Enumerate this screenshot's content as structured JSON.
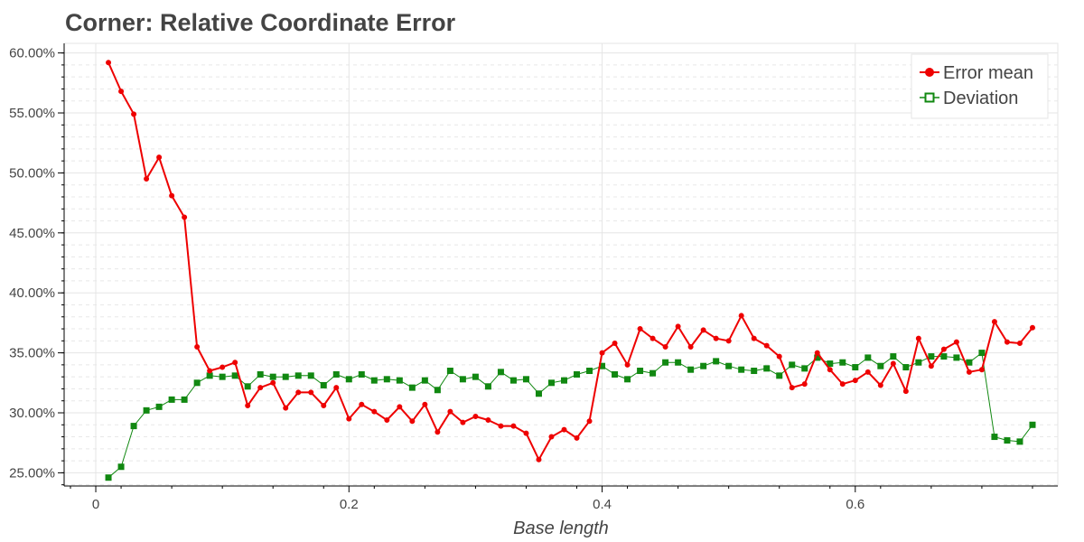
{
  "chart_data": {
    "type": "line",
    "title": "Corner: Relative Coordinate Error",
    "xlabel": "Base length",
    "ylabel": "",
    "xlim": [
      -0.025,
      0.76
    ],
    "ylim": [
      0.239,
      0.608
    ],
    "x_ticks": [
      0,
      0.2,
      0.4,
      0.6
    ],
    "x_tick_labels": [
      "0",
      "0.2",
      "0.4",
      "0.6"
    ],
    "y_ticks": [
      0.25,
      0.3,
      0.35,
      0.4,
      0.45,
      0.5,
      0.55,
      0.6
    ],
    "y_tick_labels": [
      "25.00%",
      "30.00%",
      "35.00%",
      "40.00%",
      "45.00%",
      "50.00%",
      "55.00%",
      "60.00%"
    ],
    "grid": true,
    "legend_position": "top-right",
    "x": [
      0.01,
      0.02,
      0.03,
      0.04,
      0.05,
      0.06,
      0.07,
      0.08,
      0.09,
      0.1,
      0.11,
      0.12,
      0.13,
      0.14,
      0.15,
      0.16,
      0.17,
      0.18,
      0.19,
      0.2,
      0.21,
      0.22,
      0.23,
      0.24,
      0.25,
      0.26,
      0.27,
      0.28,
      0.29,
      0.3,
      0.31,
      0.32,
      0.33,
      0.34,
      0.35,
      0.36,
      0.37,
      0.38,
      0.39,
      0.4,
      0.41,
      0.42,
      0.43,
      0.44,
      0.45,
      0.46,
      0.47,
      0.48,
      0.49,
      0.5,
      0.51,
      0.52,
      0.53,
      0.54,
      0.55,
      0.56,
      0.57,
      0.58,
      0.59,
      0.6,
      0.61,
      0.62,
      0.63,
      0.64,
      0.65,
      0.66,
      0.67,
      0.68,
      0.69,
      0.7,
      0.71,
      0.72,
      0.73,
      0.74
    ],
    "series": [
      {
        "name": "Error mean",
        "color": "#ee0000",
        "marker": "circle",
        "values": [
          0.592,
          0.568,
          0.549,
          0.495,
          0.513,
          0.481,
          0.463,
          0.355,
          0.335,
          0.338,
          0.342,
          0.306,
          0.321,
          0.325,
          0.304,
          0.317,
          0.317,
          0.306,
          0.321,
          0.295,
          0.307,
          0.301,
          0.294,
          0.305,
          0.293,
          0.307,
          0.284,
          0.301,
          0.292,
          0.297,
          0.294,
          0.289,
          0.289,
          0.283,
          0.261,
          0.28,
          0.286,
          0.279,
          0.293,
          0.35,
          0.358,
          0.34,
          0.37,
          0.362,
          0.355,
          0.372,
          0.355,
          0.369,
          0.362,
          0.36,
          0.381,
          0.362,
          0.356,
          0.347,
          0.321,
          0.324,
          0.35,
          0.336,
          0.324,
          0.327,
          0.334,
          0.323,
          0.341,
          0.318,
          0.362,
          0.339,
          0.353,
          0.359,
          0.334,
          0.336,
          0.376,
          0.359,
          0.358,
          0.371
        ]
      },
      {
        "name": "Deviation",
        "color": "#118811",
        "marker": "square",
        "values": [
          0.246,
          0.255,
          0.289,
          0.302,
          0.305,
          0.311,
          0.311,
          0.325,
          0.331,
          0.33,
          0.331,
          0.322,
          0.332,
          0.33,
          0.33,
          0.331,
          0.331,
          0.323,
          0.332,
          0.328,
          0.332,
          0.327,
          0.328,
          0.327,
          0.321,
          0.327,
          0.319,
          0.335,
          0.328,
          0.33,
          0.322,
          0.334,
          0.327,
          0.328,
          0.316,
          0.325,
          0.327,
          0.332,
          0.335,
          0.339,
          0.332,
          0.328,
          0.335,
          0.333,
          0.342,
          0.342,
          0.336,
          0.339,
          0.343,
          0.339,
          0.336,
          0.335,
          0.337,
          0.331,
          0.34,
          0.337,
          0.346,
          0.341,
          0.342,
          0.338,
          0.346,
          0.339,
          0.347,
          0.338,
          0.342,
          0.347,
          0.347,
          0.346,
          0.342,
          0.35,
          0.28,
          0.277,
          0.276,
          0.29
        ]
      }
    ]
  }
}
